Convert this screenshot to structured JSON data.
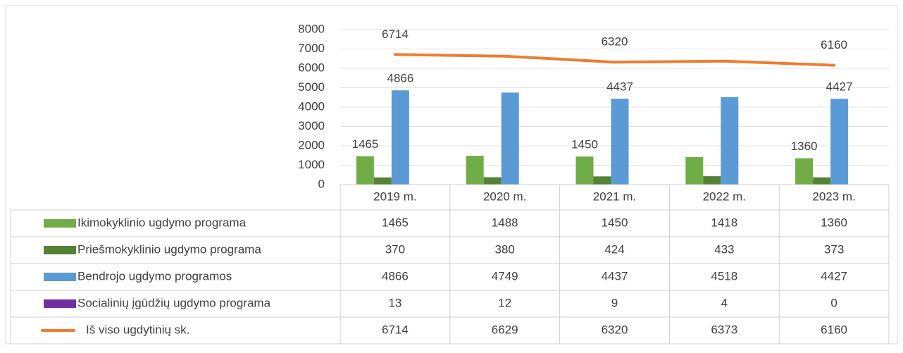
{
  "chart_data": {
    "type": "bar",
    "categories": [
      "2019 m.",
      "2020 m.",
      "2021 m.",
      "2022 m.",
      "2023 m."
    ],
    "ylim": [
      0,
      8000
    ],
    "yticks": [
      0,
      1000,
      2000,
      3000,
      4000,
      5000,
      6000,
      7000,
      8000
    ],
    "grid": true,
    "series": [
      {
        "name": "Ikimokyklinio ugdymo programa",
        "color": "#70ad47",
        "type": "bar",
        "values": [
          1465,
          1488,
          1450,
          1418,
          1360
        ],
        "labeled": [
          0,
          2,
          4
        ]
      },
      {
        "name": "Priešmokyklinio ugdymo programa",
        "color": "#548235",
        "type": "bar",
        "values": [
          370,
          380,
          424,
          433,
          373
        ]
      },
      {
        "name": "Bendrojo ugdymo programos",
        "color": "#5b9bd5",
        "type": "bar",
        "values": [
          4866,
          4749,
          4437,
          4518,
          4427
        ],
        "labeled": [
          0,
          2,
          4
        ]
      },
      {
        "name": "Socialinių įgūdžių ugdymo programa",
        "color": "#7030a0",
        "type": "bar",
        "values": [
          13,
          12,
          9,
          4,
          0
        ]
      },
      {
        "name": "Iš viso ugdytinių  sk.",
        "color": "#ed7d31",
        "type": "line",
        "values": [
          6714,
          6629,
          6320,
          6373,
          6160
        ],
        "labeled": [
          0,
          2,
          4
        ]
      }
    ]
  }
}
